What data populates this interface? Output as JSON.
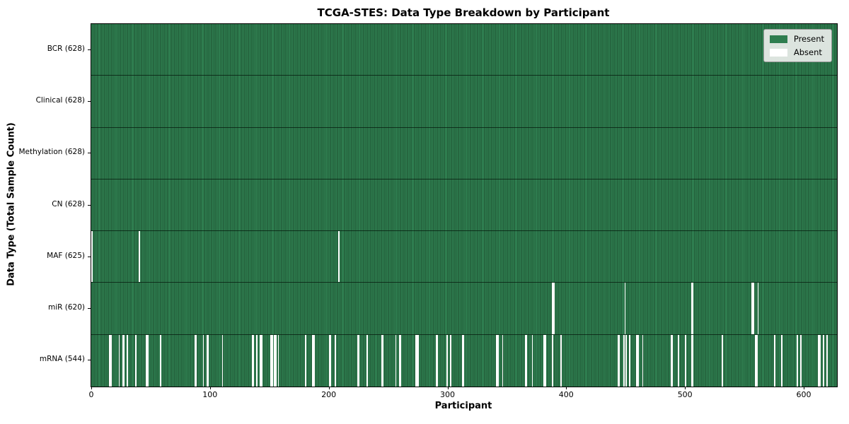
{
  "colors": {
    "present": "#2e7d4f",
    "present_edge": "#1d5131",
    "absent": "#ffffff",
    "spine": "#000000",
    "legend_bg": "#ebeeeb",
    "legend_border": "#9a9a9a"
  },
  "chart_data": {
    "type": "heatmap",
    "title": "TCGA-STES: Data Type Breakdown by Participant",
    "xlabel": "Participant",
    "ylabel": "Data Type (Total Sample Count)",
    "legend_labels": [
      "Present",
      "Absent"
    ],
    "legend_position": "upper right",
    "n_participants": 628,
    "x_ticks": [
      0,
      100,
      200,
      300,
      400,
      500,
      600
    ],
    "grid": false,
    "rows": [
      {
        "name": "bcr",
        "label": "BCR (628)",
        "present_count": 628,
        "absent_count": 0,
        "absent_participants": []
      },
      {
        "name": "clinical",
        "label": "Clinical (628)",
        "present_count": 628,
        "absent_count": 0,
        "absent_participants": []
      },
      {
        "name": "methylation",
        "label": "Methylation (628)",
        "present_count": 628,
        "absent_count": 0,
        "absent_participants": []
      },
      {
        "name": "cn",
        "label": "CN (628)",
        "present_count": 628,
        "absent_count": 0,
        "absent_participants": []
      },
      {
        "name": "maf",
        "label": "MAF (625)",
        "present_count": 625,
        "absent_count": 3,
        "absent_participants": [
          0,
          40,
          208
        ]
      },
      {
        "name": "mir",
        "label": "miR (620)",
        "present_count": 620,
        "absent_count": 8,
        "absent_participants": [
          388,
          389,
          449,
          505,
          506,
          556,
          557,
          561
        ]
      },
      {
        "name": "mrna",
        "label": "mRNA (544)",
        "present_count": 544,
        "absent_count": 84,
        "absent_participants": [
          15,
          16,
          23,
          26,
          27,
          30,
          37,
          46,
          47,
          58,
          87,
          88,
          94,
          97,
          98,
          110,
          135,
          136,
          139,
          142,
          143,
          151,
          152,
          154,
          155,
          157,
          180,
          186,
          187,
          200,
          201,
          205,
          224,
          225,
          232,
          244,
          245,
          256,
          259,
          260,
          273,
          274,
          275,
          290,
          291,
          299,
          302,
          312,
          313,
          341,
          342,
          346,
          365,
          366,
          371,
          381,
          382,
          388,
          395,
          443,
          444,
          448,
          450,
          453,
          459,
          460,
          464,
          488,
          489,
          494,
          500,
          505,
          506,
          531,
          559,
          560,
          575,
          581,
          594,
          597,
          612,
          613,
          616,
          619
        ]
      }
    ]
  }
}
